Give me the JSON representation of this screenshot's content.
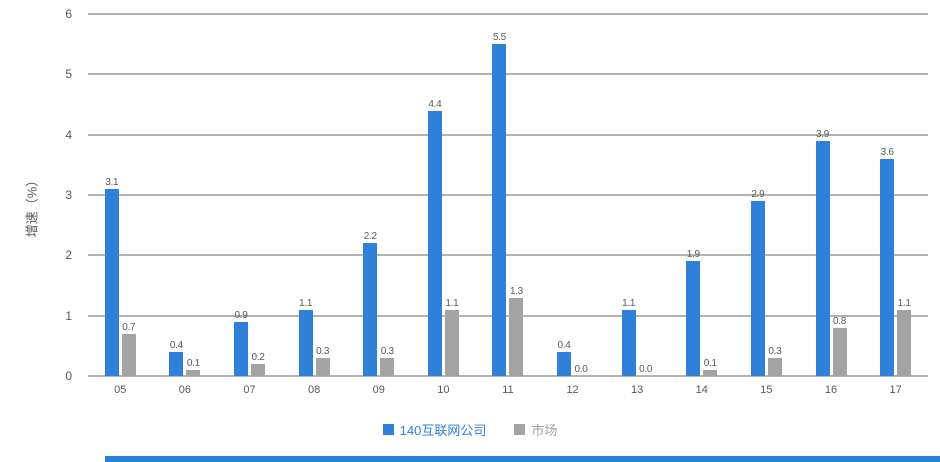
{
  "chart_data": {
    "type": "bar",
    "title": "",
    "ylabel": "增速（%）",
    "xlabel": "",
    "categories": [
      "05",
      "06",
      "07",
      "08",
      "09",
      "10",
      "11",
      "12",
      "13",
      "14",
      "15",
      "16",
      "17"
    ],
    "series": [
      {
        "name": "140互联网公司",
        "color": "#2e80d9",
        "values": [
          3.1,
          0.4,
          0.9,
          1.1,
          2.2,
          4.4,
          5.5,
          0.4,
          1.1,
          1.9,
          2.9,
          3.9,
          3.6
        ]
      },
      {
        "name": "市场",
        "color": "#a3a3a3",
        "values": [
          0.7,
          0.1,
          0.2,
          0.3,
          0.3,
          1.1,
          1.3,
          0.0,
          0.0,
          0.1,
          0.3,
          0.8,
          1.1
        ]
      }
    ],
    "ylim": [
      0,
      6
    ],
    "yticks": [
      0,
      1,
      2,
      3,
      4,
      5,
      6
    ],
    "grid": true,
    "data_labels": true,
    "legend_position": "bottom"
  },
  "colors": {
    "background": "#ffffff",
    "gridline": "#b3b3b3",
    "tick_text": "#595959",
    "data_label_text": "#595959",
    "accent_strip": "#2e80d9"
  }
}
